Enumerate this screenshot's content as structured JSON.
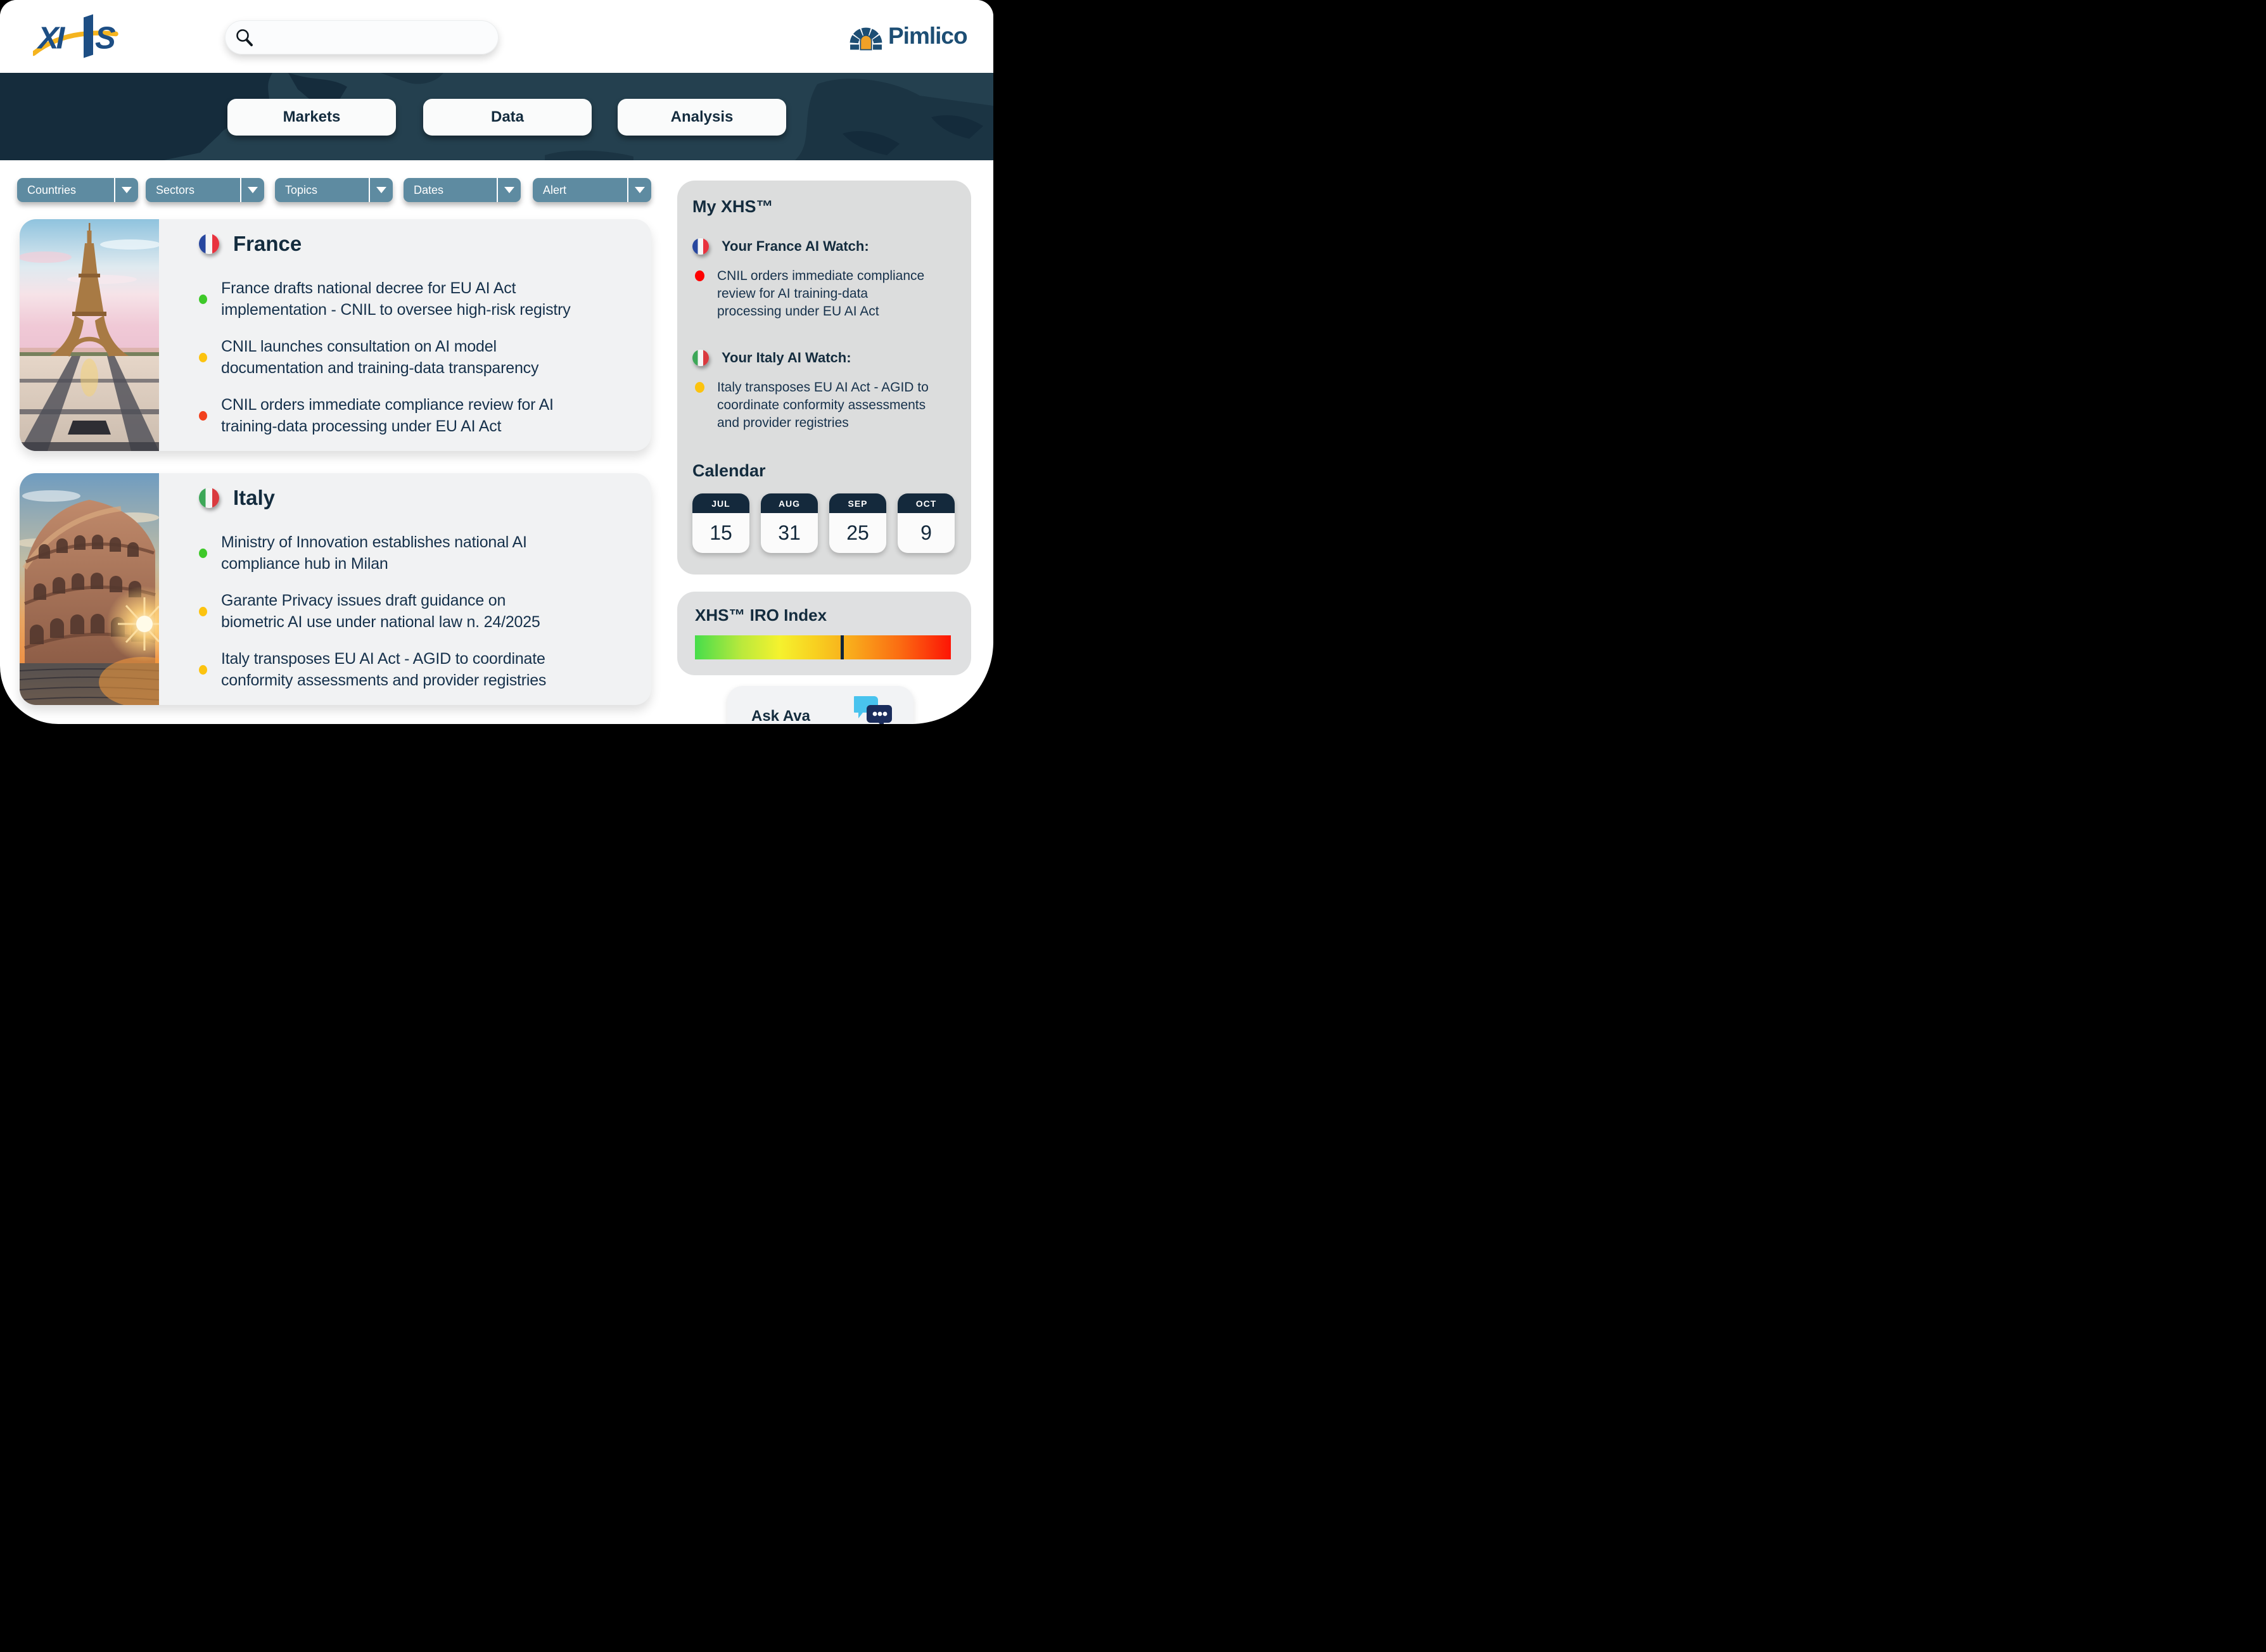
{
  "header": {
    "logo_text": "XHS",
    "search": {
      "placeholder": ""
    },
    "brand": {
      "name": "Pimlico"
    }
  },
  "nav": {
    "items": [
      {
        "label": "Markets"
      },
      {
        "label": "Data"
      },
      {
        "label": "Analysis"
      }
    ]
  },
  "filters": {
    "items": [
      {
        "label": "Countries"
      },
      {
        "label": "Sectors"
      },
      {
        "label": "Topics"
      },
      {
        "label": "Dates"
      },
      {
        "label": "Alert"
      }
    ]
  },
  "news_cards": [
    {
      "country": "France",
      "bullets": [
        {
          "color": "#3ec929",
          "text": "France drafts national decree for EU AI Act\nimplementation - CNIL to oversee high-risk registry"
        },
        {
          "color": "#fcc30f",
          "text": "CNIL launches consultation on AI model\ndocumentation and training-data transparency"
        },
        {
          "color": "#f2401d",
          "text": "CNIL orders immediate compliance review for AI\ntraining-data processing under EU AI Act"
        }
      ]
    },
    {
      "country": "Italy",
      "bullets": [
        {
          "color": "#3ec929",
          "text": "Ministry of Innovation establishes national AI\ncompliance hub in Milan"
        },
        {
          "color": "#fcc30f",
          "text": "Garante Privacy issues draft guidance on\nbiometric AI use under national law n. 24/2025"
        },
        {
          "color": "#fcc30f",
          "text": "Italy transposes EU AI Act - AGID to coordinate\nconformity assessments and provider registries"
        }
      ]
    }
  ],
  "sidebar": {
    "title": "My XHS™",
    "watches": [
      {
        "header": "Your France AI Watch:",
        "bullet_color": "#fe0202",
        "bullet_text": "CNIL orders immediate compliance\n review for AI training-data\nprocessing under EU AI Act"
      },
      {
        "header": "Your Italy AI Watch:",
        "bullet_color": "#fcc30f",
        "bullet_text": "Italy transposes EU AI Act - AGID to\ncoordinate conformity assessments\nand provider registries"
      }
    ],
    "calendar": {
      "title": "Calendar",
      "dates": [
        {
          "month": "JUL",
          "day": "15"
        },
        {
          "month": "AUG",
          "day": "31"
        },
        {
          "month": "SEP",
          "day": "25"
        },
        {
          "month": "OCT",
          "day": "9"
        }
      ]
    }
  },
  "iro_index": {
    "title": "XHS™ IRO Index",
    "marker_pct": 57
  },
  "ask_ava": {
    "label": "Ask Ava"
  },
  "colors": {
    "text_navy": "#142c3e",
    "banner_bg": "#24404f",
    "filter_blue": "#5e8ba1",
    "status_green": "#3ec929",
    "status_yellow": "#fcc30f",
    "status_red": "#f2401d",
    "alert_red": "#fe0202",
    "logo_blue": "#1d4e84",
    "logo_yellow": "#f5b41f",
    "ava_light_blue": "#49c3ee",
    "ava_navy": "#1b2d5c"
  }
}
